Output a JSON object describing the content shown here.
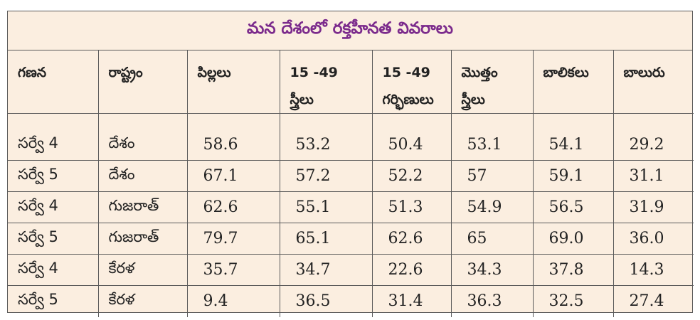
{
  "title": "మన దేశంలో రక్తహీనత వివరాలు",
  "headers": [
    "గణన",
    "రాష్ట్రం",
    "పిల్లలు",
    "15 -49\nస్త్రీలు",
    "15 -49\nగర్భిణులు",
    "మొత్తం\nస్త్రీలు",
    "బాలికలు",
    "బాలురు"
  ],
  "rows": [
    [
      "సర్వే 4",
      "దేశం",
      "58.6",
      "53.2",
      "50.4",
      "53.1",
      "54.1",
      "29.2"
    ],
    [
      "సర్వే 5",
      "దేశం",
      "67.1",
      "57.2",
      "52.2",
      "57",
      "59.1",
      "31.1"
    ],
    [
      "సర్వే 4",
      "గుజరాత్",
      "62.6",
      "55.1",
      "51.3",
      "54.9",
      "56.5",
      "31.9"
    ],
    [
      "సర్వే 5",
      "గుజరాత్",
      "79.7",
      "65.1",
      "62.6",
      "65",
      "69.0",
      "36.0"
    ],
    [
      "సర్వే 4",
      "కేరళ",
      "35.7",
      "34.7",
      "22.6",
      "34.3",
      "37.8",
      "14.3"
    ],
    [
      "సర్వే 5",
      "కేరళ",
      "9.4",
      "36.5",
      "31.4",
      "36.3",
      "32.5",
      "27.4"
    ]
  ]
}
